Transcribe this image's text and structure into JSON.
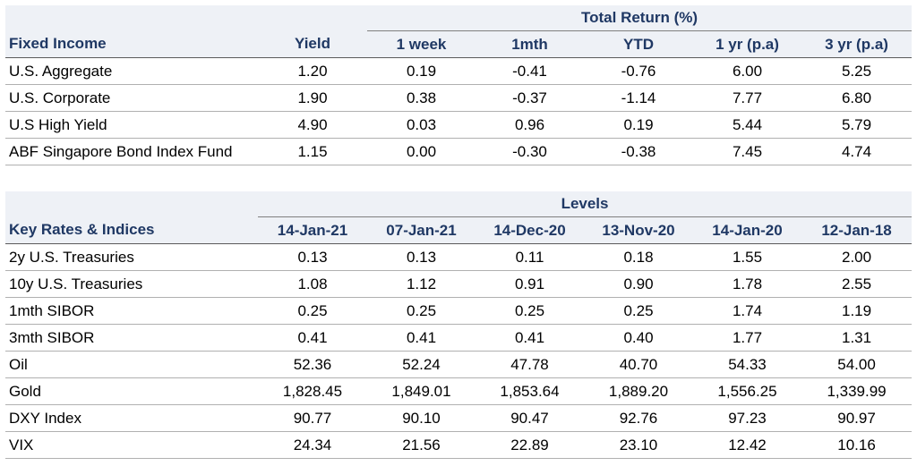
{
  "fixed_income": {
    "label": "Fixed Income",
    "group_title": "Total Return (%)",
    "columns": [
      "Yield",
      "1 week",
      "1mth",
      "YTD",
      "1 yr (p.a)",
      "3 yr (p.a)"
    ],
    "rows": [
      {
        "name": "U.S. Aggregate",
        "values": [
          "1.20",
          "0.19",
          "-0.41",
          "-0.76",
          "6.00",
          "5.25"
        ]
      },
      {
        "name": "U.S. Corporate",
        "values": [
          "1.90",
          "0.38",
          "-0.37",
          "-1.14",
          "7.77",
          "6.80"
        ]
      },
      {
        "name": "U.S High Yield",
        "values": [
          "4.90",
          "0.03",
          "0.96",
          "0.19",
          "5.44",
          "5.79"
        ]
      },
      {
        "name": "ABF Singapore Bond Index Fund",
        "values": [
          "1.15",
          "0.00",
          "-0.30",
          "-0.38",
          "7.45",
          "4.74"
        ]
      }
    ]
  },
  "key_rates": {
    "label": "Key Rates & Indices",
    "group_title": "Levels",
    "columns": [
      "14-Jan-21",
      "07-Jan-21",
      "14-Dec-20",
      "13-Nov-20",
      "14-Jan-20",
      "12-Jan-18"
    ],
    "rows": [
      {
        "name": "2y U.S. Treasuries",
        "values": [
          "0.13",
          "0.13",
          "0.11",
          "0.18",
          "1.55",
          "2.00"
        ]
      },
      {
        "name": "10y U.S. Treasuries",
        "values": [
          "1.08",
          "1.12",
          "0.91",
          "0.90",
          "1.78",
          "2.55"
        ]
      },
      {
        "name": "1mth SIBOR",
        "values": [
          "0.25",
          "0.25",
          "0.25",
          "0.25",
          "1.74",
          "1.19"
        ]
      },
      {
        "name": "3mth SIBOR",
        "values": [
          "0.41",
          "0.41",
          "0.41",
          "0.40",
          "1.77",
          "1.31"
        ]
      },
      {
        "name": "Oil",
        "values": [
          "52.36",
          "52.24",
          "47.78",
          "40.70",
          "54.33",
          "54.00"
        ]
      },
      {
        "name": "Gold",
        "values": [
          "1,828.45",
          "1,849.01",
          "1,853.64",
          "1,889.20",
          "1,556.25",
          "1,339.99"
        ]
      },
      {
        "name": "DXY Index",
        "values": [
          "90.77",
          "90.10",
          "90.47",
          "92.76",
          "97.23",
          "90.97"
        ]
      },
      {
        "name": "VIX",
        "values": [
          "24.34",
          "21.56",
          "22.89",
          "23.10",
          "12.42",
          "10.16"
        ]
      }
    ]
  }
}
